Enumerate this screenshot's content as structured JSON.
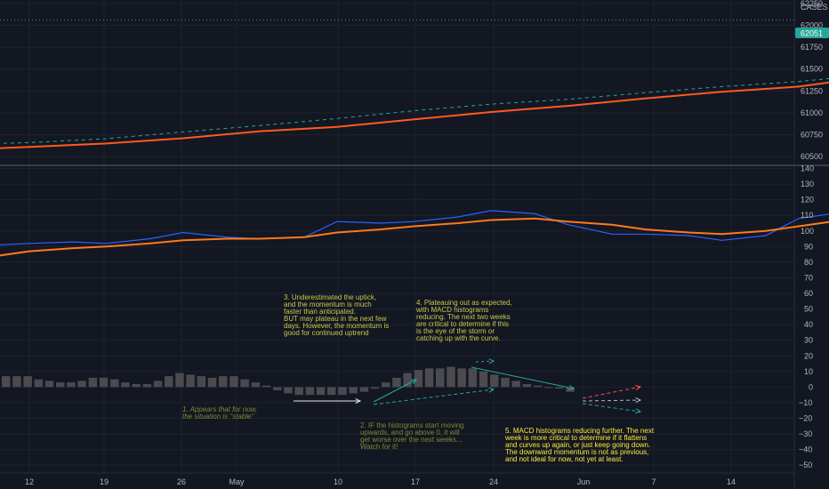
{
  "chart_data": [
    {
      "type": "line",
      "symbol": "CASES",
      "ylim": [
        60400,
        62290
      ],
      "yticks": [
        60500,
        60750,
        61000,
        61250,
        61500,
        61750,
        62000,
        62250
      ],
      "last_price_label": "62051",
      "colors": {
        "ma": "#ff5a1f",
        "price_dash": "#26a69a",
        "last_badge": "#26a69a"
      },
      "series": [
        {
          "key": "price",
          "style": "dashed",
          "x": [
            "2020-05-08",
            "2020-05-11",
            "2020-05-18",
            "2020-05-25",
            "2020-06-01",
            "2020-06-08",
            "2020-06-15",
            "2020-06-22",
            "2020-06-29",
            "2020-07-06",
            "2020-07-13",
            "2020-07-20",
            "2020-07-27",
            "2020-08-03",
            "2020-08-10",
            "2020-08-17",
            "2020-08-24",
            "2020-08-31"
          ],
          "y": [
            60650,
            60660,
            60705,
            60782,
            60855,
            60935,
            61025,
            61100,
            61155,
            61230,
            61300,
            61358,
            61445,
            61545,
            61650,
            61745,
            61850,
            62060
          ]
        },
        {
          "key": "ma",
          "style": "solid",
          "x": [
            "2020-05-08",
            "2020-05-11",
            "2020-05-18",
            "2020-05-25",
            "2020-06-01",
            "2020-06-08",
            "2020-06-15",
            "2020-06-22",
            "2020-06-29",
            "2020-07-06",
            "2020-07-13",
            "2020-07-20",
            "2020-07-27",
            "2020-08-03",
            "2020-08-10",
            "2020-08-17",
            "2020-08-24",
            "2020-08-31"
          ],
          "y": [
            60595,
            60610,
            60650,
            60710,
            60790,
            60840,
            60925,
            61010,
            61080,
            61165,
            61240,
            61300,
            61420,
            61530,
            61630,
            61730,
            61820,
            61990
          ]
        }
      ]
    },
    {
      "type": "line",
      "ylim": [
        -55,
        142
      ],
      "yticks": [
        140,
        130,
        120,
        110,
        100,
        90,
        80,
        70,
        60,
        50,
        40,
        30,
        20,
        10,
        0,
        -10,
        -20,
        -30,
        -40,
        -50
      ],
      "colors": {
        "fast": "#2962ff",
        "slow": "#ff7a1a",
        "histogram": "#4a4a4f"
      },
      "series": [
        {
          "key": "fast",
          "x": [
            "2020-05-08",
            "2020-05-11",
            "2020-05-15",
            "2020-05-18",
            "2020-05-22",
            "2020-05-25",
            "2020-05-29",
            "2020-06-01",
            "2020-06-05",
            "2020-06-08",
            "2020-06-12",
            "2020-06-15",
            "2020-06-19",
            "2020-06-22",
            "2020-06-26",
            "2020-06-29",
            "2020-07-03",
            "2020-07-06",
            "2020-07-10",
            "2020-07-13",
            "2020-07-17",
            "2020-07-20",
            "2020-07-24",
            "2020-07-27",
            "2020-07-31",
            "2020-08-03",
            "2020-08-07",
            "2020-08-10",
            "2020-08-14",
            "2020-08-17",
            "2020-08-21",
            "2020-08-24",
            "2020-08-28",
            "2020-08-31"
          ],
          "y": [
            91,
            92,
            93,
            92,
            95,
            99,
            96,
            95,
            96,
            106,
            105,
            106,
            109,
            113,
            111,
            104,
            98,
            98,
            97,
            94,
            97,
            108,
            112,
            117,
            121,
            126,
            131,
            133,
            132,
            131,
            129,
            127,
            124,
            121
          ]
        },
        {
          "key": "slow",
          "x": [
            "2020-05-08",
            "2020-05-11",
            "2020-05-15",
            "2020-05-18",
            "2020-05-22",
            "2020-05-25",
            "2020-05-29",
            "2020-06-01",
            "2020-06-05",
            "2020-06-08",
            "2020-06-12",
            "2020-06-15",
            "2020-06-19",
            "2020-06-22",
            "2020-06-26",
            "2020-06-29",
            "2020-07-03",
            "2020-07-06",
            "2020-07-10",
            "2020-07-13",
            "2020-07-17",
            "2020-07-20",
            "2020-07-24",
            "2020-07-27",
            "2020-07-31",
            "2020-08-03",
            "2020-08-07",
            "2020-08-10",
            "2020-08-14",
            "2020-08-17",
            "2020-08-21",
            "2020-08-24",
            "2020-08-28",
            "2020-08-31"
          ],
          "y": [
            84,
            87,
            89,
            90,
            92,
            94,
            95,
            95,
            96,
            99,
            101,
            103,
            105,
            107,
            108,
            106,
            104,
            101,
            99,
            98,
            100,
            103,
            107,
            111,
            115,
            119,
            122,
            125,
            127,
            128,
            128,
            127,
            126,
            125
          ]
        },
        {
          "key": "histogram",
          "type": "bar",
          "values": [
            7,
            7,
            7,
            5,
            4,
            3,
            3,
            4,
            6,
            6,
            5,
            3,
            2,
            2,
            4,
            7,
            9,
            8,
            7,
            6,
            7,
            7,
            5,
            3,
            1,
            -2,
            -4,
            -5,
            -5,
            -5,
            -5,
            -5,
            -4,
            -3,
            -1,
            3,
            6,
            9,
            11,
            12,
            12,
            13,
            12,
            12,
            10,
            8,
            6,
            4,
            2,
            1,
            0,
            -1,
            -3
          ]
        }
      ]
    }
  ],
  "x_axis": {
    "ticks": [
      "12",
      "19",
      "26",
      "May",
      "10",
      "17",
      "24",
      "Jun",
      "7",
      "14"
    ]
  },
  "annotations": [
    {
      "color": "#c9c94a",
      "lines": [
        "3. Underestimated the uptick,",
        "and the momentum is much",
        "faster than anticipated.",
        "BUT may plateau in the next few",
        "days. However, the momentum is",
        "good for continued uptrend"
      ]
    },
    {
      "color": "#c9c94a",
      "lines": [
        "4. Plateauing out as expected,",
        "with MACD histograms",
        "reducing. The next two weeks",
        "are critical to determine if this",
        "is the eye of the storm or",
        "catching up with the curve."
      ]
    },
    {
      "color": "#7d8a2e",
      "italic": true,
      "lines": [
        "1. Appears that for now,",
        "the situation is \"stable\""
      ]
    },
    {
      "color": "#7d8a2e",
      "lines": [
        "2. IF the histograms start moving",
        "upwards, and go above 0, it will",
        "get worse over the next weeks...",
        "Watch for it!"
      ]
    },
    {
      "color": "#ffeb3b",
      "lines": [
        "5. MACD histograms reducing further. The next",
        "week is more critical to determine if it flattens",
        "and curves up again, or just keep going down.",
        "The downward momentum is not as previous,",
        "and not ideal for now, not yet at least."
      ]
    }
  ]
}
